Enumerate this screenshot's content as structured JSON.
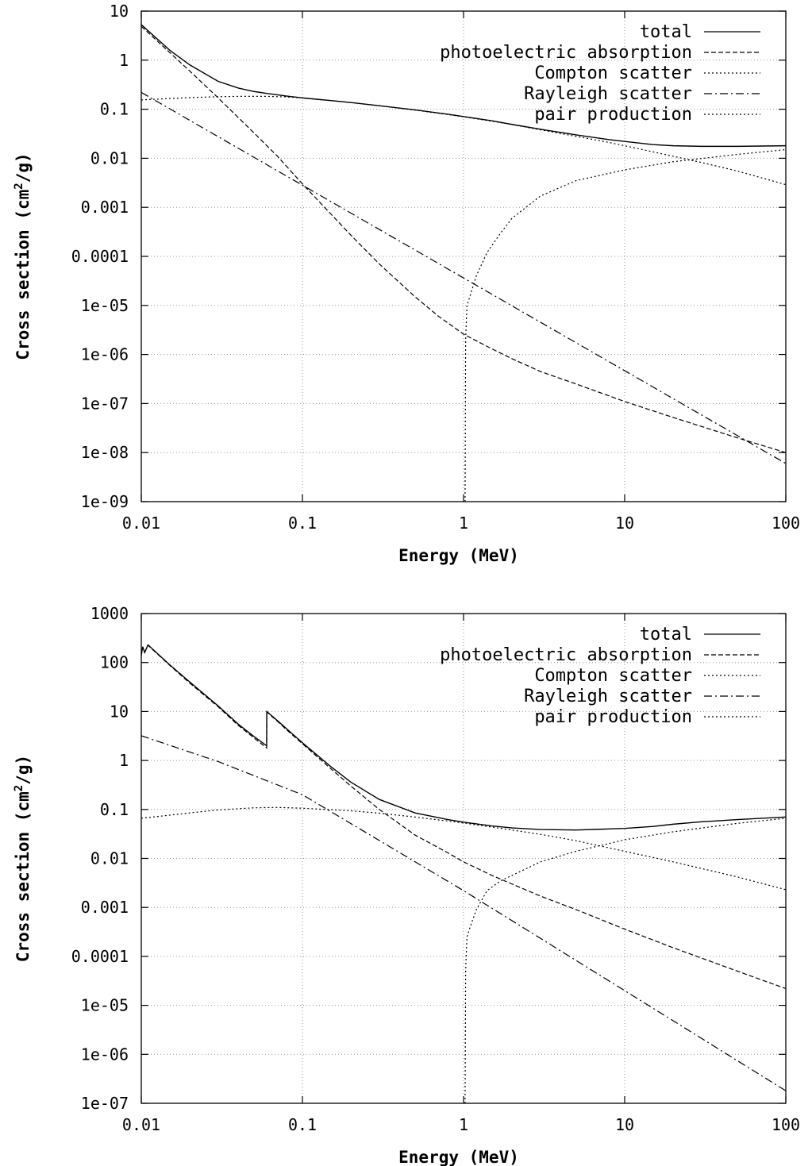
{
  "chart_data": [
    {
      "type": "line",
      "title": "",
      "xlabel": "Energy (MeV)",
      "ylabel": "Cross section (cm2/g)",
      "ylabel_parts": [
        "Cross section (cm",
        "2",
        "/g)"
      ],
      "x_scale": "log",
      "y_scale": "log",
      "xlim": [
        0.01,
        100
      ],
      "ylim": [
        1e-09,
        10
      ],
      "x_ticks": [
        0.01,
        0.1,
        1,
        10,
        100
      ],
      "x_tick_labels": [
        "0.01",
        "0.1",
        "1",
        "10",
        "100"
      ],
      "y_ticks": [
        1e-09,
        1e-08,
        1e-07,
        1e-06,
        1e-05,
        0.0001,
        0.001,
        0.01,
        0.1,
        1,
        10
      ],
      "y_tick_labels": [
        "1e-09",
        "1e-08",
        "1e-07",
        "1e-06",
        "1e-05",
        "0.0001",
        "0.001",
        "0.01",
        "0.1",
        "1",
        "10"
      ],
      "grid": true,
      "legend_position": "top-right",
      "series": [
        {
          "name": "total",
          "style": "solid",
          "x": [
            0.01,
            0.015,
            0.02,
            0.03,
            0.04,
            0.05,
            0.06,
            0.08,
            0.1,
            0.15,
            0.2,
            0.3,
            0.5,
            0.8,
            1,
            1.5,
            2,
            3,
            5,
            8,
            10,
            15,
            20,
            30,
            50,
            100
          ],
          "y": [
            5.3,
            1.6,
            0.8,
            0.37,
            0.27,
            0.23,
            0.21,
            0.185,
            0.17,
            0.15,
            0.137,
            0.118,
            0.097,
            0.079,
            0.071,
            0.058,
            0.049,
            0.039,
            0.03,
            0.024,
            0.022,
            0.019,
            0.018,
            0.0175,
            0.0175,
            0.018
          ]
        },
        {
          "name": "photoelectric absorption",
          "style": "dashed",
          "x": [
            0.01,
            0.02,
            0.03,
            0.05,
            0.07,
            0.1,
            0.2,
            0.3,
            0.5,
            0.7,
            1,
            1.5,
            2,
            3,
            5,
            10,
            20,
            50,
            100
          ],
          "y": [
            4.9,
            0.6,
            0.17,
            0.033,
            0.011,
            0.003,
            0.00027,
            7e-05,
            1.5e-05,
            6e-06,
            2.6e-06,
            1.3e-06,
            8.2e-07,
            4.5e-07,
            2.5e-07,
            1.1e-07,
            5.2e-08,
            2e-08,
            1e-08
          ]
        },
        {
          "name": "Compton scatter",
          "style": "dotted",
          "x": [
            0.01,
            0.015,
            0.02,
            0.03,
            0.04,
            0.06,
            0.08,
            0.1,
            0.15,
            0.2,
            0.3,
            0.5,
            0.8,
            1,
            1.5,
            2,
            3,
            5,
            8,
            10,
            15,
            20,
            30,
            50,
            100
          ],
          "y": [
            0.155,
            0.165,
            0.172,
            0.18,
            0.183,
            0.183,
            0.178,
            0.17,
            0.15,
            0.137,
            0.118,
            0.096,
            0.078,
            0.07,
            0.057,
            0.049,
            0.038,
            0.028,
            0.021,
            0.018,
            0.0135,
            0.011,
            0.0082,
            0.0055,
            0.0029
          ]
        },
        {
          "name": "Rayleigh scatter",
          "style": "dashdot",
          "x": [
            0.01,
            100
          ],
          "y": [
            0.22,
            6e-09
          ]
        },
        {
          "name": "pair production",
          "style": "dotted",
          "x": [
            1.022,
            1.03,
            1.05,
            1.1,
            1.2,
            1.4,
            1.7,
            2,
            3,
            5,
            10,
            20,
            50,
            100
          ],
          "y": [
            1e-09,
            2e-06,
            1e-05,
            1.6e-05,
            4e-05,
            0.00012,
            0.0003,
            0.0006,
            0.0017,
            0.0035,
            0.0058,
            0.0085,
            0.012,
            0.015
          ]
        }
      ]
    },
    {
      "type": "line",
      "title": "",
      "xlabel": "Energy (MeV)",
      "ylabel": "Cross section (cm2/g)",
      "ylabel_parts": [
        "Cross section (cm",
        "2",
        "/g)"
      ],
      "x_scale": "log",
      "y_scale": "log",
      "xlim": [
        0.01,
        100
      ],
      "ylim": [
        1e-07,
        1000
      ],
      "x_ticks": [
        0.01,
        0.1,
        1,
        10,
        100
      ],
      "x_tick_labels": [
        "0.01",
        "0.1",
        "1",
        "10",
        "100"
      ],
      "y_ticks": [
        1e-07,
        1e-06,
        1e-05,
        0.0001,
        0.001,
        0.01,
        0.1,
        1,
        10,
        100,
        1000
      ],
      "y_tick_labels": [
        "1e-07",
        "1e-06",
        "1e-05",
        "0.0001",
        "0.001",
        "0.01",
        "0.1",
        "1",
        "10",
        "100",
        "1000"
      ],
      "grid": true,
      "legend_position": "top-right",
      "series": [
        {
          "name": "total",
          "style": "solid",
          "x": [
            0.01,
            0.0102,
            0.0105,
            0.011,
            0.015,
            0.02,
            0.03,
            0.04,
            0.05,
            0.06,
            0.0601,
            0.07,
            0.08,
            0.1,
            0.15,
            0.2,
            0.3,
            0.5,
            0.8,
            1,
            1.5,
            2,
            3,
            5,
            8,
            10,
            15,
            20,
            30,
            50,
            100
          ],
          "y": [
            140,
            210,
            160,
            230,
            90,
            40,
            13,
            5.5,
            3.1,
            2.0,
            10,
            6.5,
            4.4,
            2.3,
            0.75,
            0.36,
            0.16,
            0.085,
            0.062,
            0.055,
            0.046,
            0.042,
            0.039,
            0.038,
            0.04,
            0.041,
            0.045,
            0.05,
            0.056,
            0.062,
            0.07
          ]
        },
        {
          "name": "photoelectric absorption",
          "style": "dashed",
          "x": [
            0.01,
            0.0102,
            0.0105,
            0.011,
            0.015,
            0.02,
            0.03,
            0.04,
            0.05,
            0.06,
            0.0601,
            0.07,
            0.08,
            0.1,
            0.15,
            0.2,
            0.3,
            0.5,
            0.8,
            1,
            1.5,
            2,
            3,
            5,
            10,
            20,
            50,
            100
          ],
          "y": [
            140,
            210,
            160,
            225,
            88,
            38,
            12.5,
            5.2,
            2.9,
            1.8,
            9.8,
            6.3,
            4.2,
            2.2,
            0.68,
            0.3,
            0.1,
            0.03,
            0.013,
            0.0085,
            0.0045,
            0.003,
            0.0017,
            0.0009,
            0.00036,
            0.00015,
            5e-05,
            2.2e-05
          ]
        },
        {
          "name": "Compton scatter",
          "style": "dotted",
          "x": [
            0.01,
            0.02,
            0.03,
            0.05,
            0.07,
            0.1,
            0.2,
            0.3,
            0.5,
            1,
            2,
            3,
            5,
            10,
            20,
            50,
            100
          ],
          "y": [
            0.066,
            0.085,
            0.098,
            0.108,
            0.11,
            0.106,
            0.094,
            0.084,
            0.07,
            0.053,
            0.038,
            0.031,
            0.023,
            0.014,
            0.0085,
            0.0042,
            0.0023
          ]
        },
        {
          "name": "Rayleigh scatter",
          "style": "dashdot",
          "x": [
            0.01,
            0.03,
            0.1,
            1,
            10,
            100
          ],
          "y": [
            3.2,
            0.95,
            0.2,
            0.0022,
            2e-05,
            1.8e-07
          ]
        },
        {
          "name": "pair production",
          "style": "dotted",
          "x": [
            1.022,
            1.03,
            1.05,
            1.1,
            1.2,
            1.4,
            1.7,
            2,
            3,
            5,
            10,
            20,
            50,
            100
          ],
          "y": [
            1e-07,
            5e-05,
            0.00025,
            0.0004,
            0.0009,
            0.0022,
            0.0035,
            0.0045,
            0.0085,
            0.014,
            0.024,
            0.035,
            0.052,
            0.066
          ]
        }
      ]
    }
  ]
}
